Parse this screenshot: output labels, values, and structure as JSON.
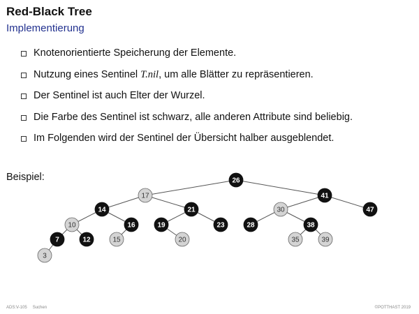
{
  "slide": {
    "title": "Red-Black Tree",
    "subtitle": "Implementierung"
  },
  "bullets": [
    {
      "text": "Knotenorientierte Speicherung der Elemente."
    },
    {
      "before": "Nutzung eines Sentinel ",
      "math": "T.nil",
      "after": ", um alle Blätter zu repräsentieren."
    },
    {
      "text": "Der Sentinel ist auch Elter der Wurzel."
    },
    {
      "text": "Die Farbe des Sentinel ist schwarz, alle anderen Attribute sind beliebig."
    },
    {
      "text": "Im Folgenden wird der Sentinel der Übersicht halber ausgeblendet."
    }
  ],
  "example": {
    "label": "Beispiel:",
    "colors": {
      "black": "#111111",
      "red": "#d4d4d4"
    },
    "nodes": [
      {
        "key": "26",
        "color": "black"
      },
      {
        "key": "17",
        "color": "red"
      },
      {
        "key": "41",
        "color": "black"
      },
      {
        "key": "14",
        "color": "black"
      },
      {
        "key": "21",
        "color": "black"
      },
      {
        "key": "30",
        "color": "red"
      },
      {
        "key": "47",
        "color": "black"
      },
      {
        "key": "10",
        "color": "red"
      },
      {
        "key": "16",
        "color": "black"
      },
      {
        "key": "19",
        "color": "black"
      },
      {
        "key": "23",
        "color": "black"
      },
      {
        "key": "28",
        "color": "black"
      },
      {
        "key": "38",
        "color": "black"
      },
      {
        "key": "7",
        "color": "black"
      },
      {
        "key": "12",
        "color": "black"
      },
      {
        "key": "15",
        "color": "red"
      },
      {
        "key": "20",
        "color": "red"
      },
      {
        "key": "35",
        "color": "red"
      },
      {
        "key": "39",
        "color": "red"
      },
      {
        "key": "3",
        "color": "red"
      }
    ],
    "edges": [
      [
        "26",
        "17"
      ],
      [
        "26",
        "41"
      ],
      [
        "17",
        "14"
      ],
      [
        "17",
        "21"
      ],
      [
        "41",
        "30"
      ],
      [
        "41",
        "47"
      ],
      [
        "14",
        "10"
      ],
      [
        "14",
        "16"
      ],
      [
        "21",
        "19"
      ],
      [
        "21",
        "23"
      ],
      [
        "30",
        "28"
      ],
      [
        "30",
        "38"
      ],
      [
        "10",
        "7"
      ],
      [
        "10",
        "12"
      ],
      [
        "16",
        "15"
      ],
      [
        "19",
        "20"
      ],
      [
        "38",
        "35"
      ],
      [
        "38",
        "39"
      ],
      [
        "7",
        "3"
      ]
    ]
  },
  "footer": {
    "course": "ADS:V-105",
    "topic": "Suchen",
    "copyright": "©POTTHAST 2019"
  }
}
